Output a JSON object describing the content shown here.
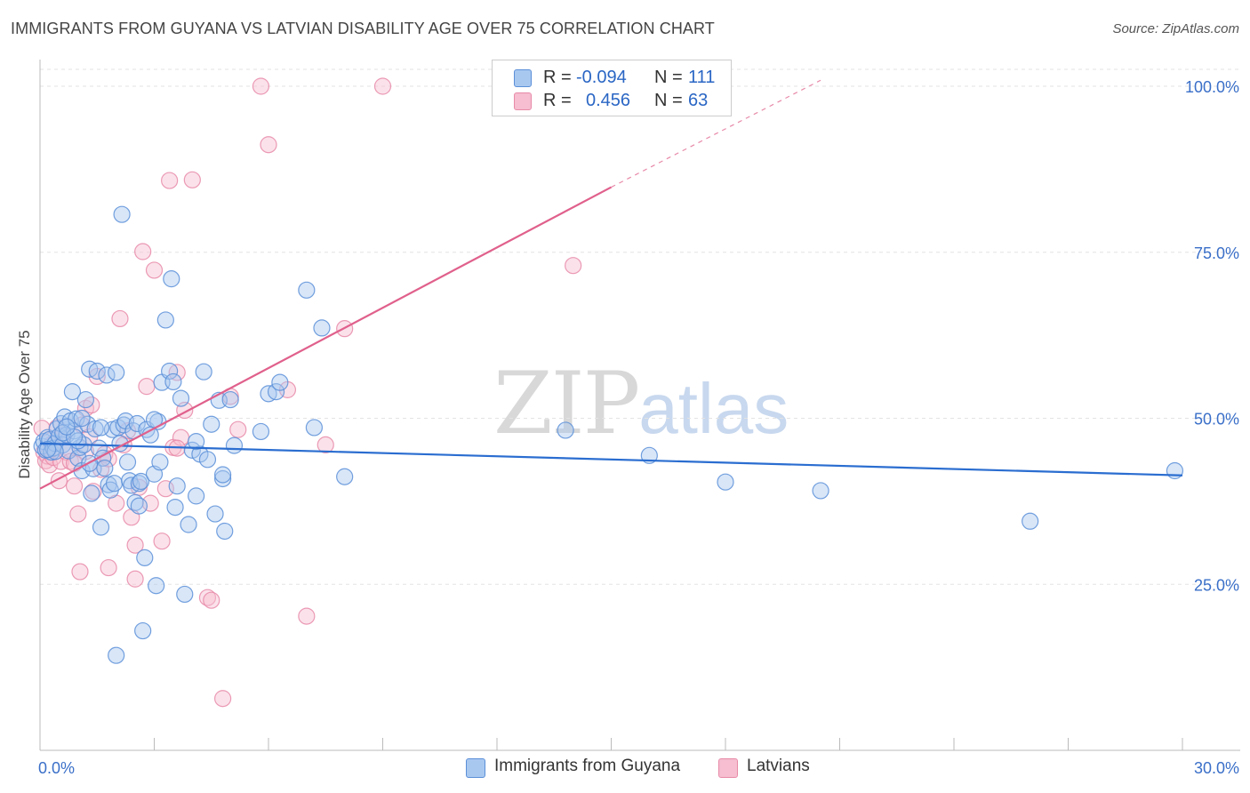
{
  "title": "IMMIGRANTS FROM GUYANA VS LATVIAN DISABILITY AGE OVER 75 CORRELATION CHART",
  "source": "Source: ZipAtlas.com",
  "watermark": {
    "zip": "ZIP",
    "atlas": "atlas"
  },
  "legend": {
    "rows": [
      {
        "r_label": "R = ",
        "r_value": "-0.094",
        "n_label": "N = ",
        "n_value": "111"
      },
      {
        "r_label": "R = ",
        "r_value": "0.456",
        "n_label": "N = ",
        "n_value": "63"
      }
    ]
  },
  "colors": {
    "blue_fill": "#a9c8f0",
    "blue_stroke": "#5b8fd8",
    "blue_line": "#2a6dd0",
    "pink_fill": "#f6bed0",
    "pink_stroke": "#e88aa8",
    "pink_line": "#e0608c",
    "tick_label": "#3a6fc8",
    "grid": "#e3e3e3"
  },
  "chart_data": {
    "type": "scatter",
    "title": "IMMIGRANTS FROM GUYANA VS LATVIAN DISABILITY AGE OVER 75 CORRELATION CHART",
    "xlabel": "",
    "ylabel": "Disability Age Over 75",
    "xlim": [
      0,
      30
    ],
    "ylim": [
      0,
      100
    ],
    "x_tick_labels": [
      "0.0%",
      "30.0%"
    ],
    "y_ticks": [
      25,
      50,
      75,
      100
    ],
    "y_tick_labels": [
      "25.0%",
      "50.0%",
      "75.0%",
      "100.0%"
    ],
    "series": [
      {
        "name": "Immigrants from Guyana",
        "color": "blue",
        "r": -0.094,
        "n": 111,
        "trend": {
          "x": [
            0,
            30
          ],
          "y": [
            46.2,
            41.4
          ]
        },
        "points": [
          [
            0.05,
            45.8
          ],
          [
            0.1,
            46.5
          ],
          [
            0.15,
            45.2
          ],
          [
            0.2,
            47.1
          ],
          [
            0.25,
            46.8
          ],
          [
            0.3,
            44.9
          ],
          [
            0.35,
            45.5
          ],
          [
            0.4,
            46.2
          ],
          [
            0.45,
            48.4
          ],
          [
            0.5,
            47.3
          ],
          [
            0.55,
            49.2
          ],
          [
            0.6,
            46.0
          ],
          [
            0.65,
            50.2
          ],
          [
            0.7,
            47.5
          ],
          [
            0.75,
            45.1
          ],
          [
            0.8,
            49.6
          ],
          [
            0.85,
            54.0
          ],
          [
            0.9,
            48.1
          ],
          [
            0.95,
            49.9
          ],
          [
            1.0,
            44.0
          ],
          [
            1.05,
            45.6
          ],
          [
            1.1,
            42.1
          ],
          [
            1.15,
            46.0
          ],
          [
            1.2,
            52.8
          ],
          [
            1.25,
            49.1
          ],
          [
            1.3,
            57.4
          ],
          [
            1.35,
            38.7
          ],
          [
            1.4,
            42.4
          ],
          [
            1.45,
            48.4
          ],
          [
            1.5,
            57.1
          ],
          [
            1.55,
            45.5
          ],
          [
            1.6,
            33.6
          ],
          [
            1.65,
            44.0
          ],
          [
            1.7,
            42.5
          ],
          [
            1.75,
            56.5
          ],
          [
            1.8,
            40.0
          ],
          [
            1.85,
            39.2
          ],
          [
            1.9,
            48.3
          ],
          [
            1.95,
            40.2
          ],
          [
            2.0,
            56.9
          ],
          [
            2.05,
            48.6
          ],
          [
            2.1,
            46.2
          ],
          [
            2.15,
            80.7
          ],
          [
            2.2,
            49.0
          ],
          [
            2.25,
            49.6
          ],
          [
            2.3,
            43.4
          ],
          [
            2.35,
            40.6
          ],
          [
            2.4,
            39.9
          ],
          [
            2.45,
            48.1
          ],
          [
            2.5,
            37.3
          ],
          [
            2.55,
            49.2
          ],
          [
            2.6,
            40.2
          ],
          [
            2.65,
            40.5
          ],
          [
            2.7,
            18.0
          ],
          [
            2.75,
            29.0
          ],
          [
            2.8,
            48.3
          ],
          [
            2.9,
            47.5
          ],
          [
            3.0,
            41.6
          ],
          [
            3.05,
            24.8
          ],
          [
            3.1,
            49.5
          ],
          [
            3.15,
            43.4
          ],
          [
            3.2,
            55.4
          ],
          [
            3.3,
            64.8
          ],
          [
            3.4,
            57.1
          ],
          [
            3.45,
            71.0
          ],
          [
            3.5,
            55.5
          ],
          [
            3.55,
            36.6
          ],
          [
            3.6,
            39.8
          ],
          [
            3.7,
            53.0
          ],
          [
            3.8,
            23.5
          ],
          [
            3.9,
            34.0
          ],
          [
            4.0,
            45.2
          ],
          [
            4.1,
            38.3
          ],
          [
            4.2,
            44.6
          ],
          [
            4.3,
            57.0
          ],
          [
            4.4,
            43.8
          ],
          [
            4.5,
            49.1
          ],
          [
            4.6,
            35.6
          ],
          [
            4.7,
            52.7
          ],
          [
            4.8,
            40.9
          ],
          [
            4.85,
            33.0
          ],
          [
            5.0,
            52.8
          ],
          [
            5.1,
            45.9
          ],
          [
            6.0,
            53.7
          ],
          [
            6.2,
            54.0
          ],
          [
            6.3,
            55.4
          ],
          [
            7.0,
            69.3
          ],
          [
            7.2,
            48.6
          ],
          [
            7.4,
            63.6
          ],
          [
            8.0,
            41.2
          ],
          [
            5.8,
            48.0
          ],
          [
            13.8,
            48.2
          ],
          [
            16.0,
            44.4
          ],
          [
            18.0,
            40.4
          ],
          [
            20.5,
            39.1
          ],
          [
            26.0,
            34.5
          ],
          [
            29.8,
            42.1
          ],
          [
            0.6,
            47.8
          ],
          [
            1.0,
            46.6
          ],
          [
            1.3,
            43.2
          ],
          [
            2.0,
            14.3
          ],
          [
            4.8,
            41.5
          ],
          [
            3.0,
            49.8
          ],
          [
            1.6,
            48.6
          ],
          [
            0.9,
            47.2
          ],
          [
            0.4,
            45.0
          ],
          [
            0.7,
            48.7
          ],
          [
            1.1,
            50.0
          ],
          [
            2.6,
            36.8
          ],
          [
            4.1,
            46.5
          ],
          [
            0.2,
            45.3
          ]
        ]
      },
      {
        "name": "Latvians",
        "color": "pink",
        "r": 0.456,
        "n": 63,
        "trend": {
          "x": [
            0,
            15.0
          ],
          "y": [
            39.4,
            84.8
          ]
        },
        "trend_dashed": {
          "x": [
            15.0,
            20.5
          ],
          "y": [
            84.8,
            100.9
          ]
        },
        "points": [
          [
            0.05,
            48.5
          ],
          [
            0.1,
            44.9
          ],
          [
            0.15,
            43.6
          ],
          [
            0.2,
            44.3
          ],
          [
            0.25,
            43.0
          ],
          [
            0.3,
            46.1
          ],
          [
            0.35,
            44.1
          ],
          [
            0.4,
            46.5
          ],
          [
            0.45,
            48.6
          ],
          [
            0.5,
            40.6
          ],
          [
            0.55,
            43.5
          ],
          [
            0.6,
            47.4
          ],
          [
            0.7,
            44.9
          ],
          [
            0.8,
            43.5
          ],
          [
            0.9,
            39.8
          ],
          [
            1.0,
            35.6
          ],
          [
            1.05,
            26.9
          ],
          [
            1.1,
            49.0
          ],
          [
            1.2,
            51.5
          ],
          [
            1.3,
            47.2
          ],
          [
            1.35,
            52.0
          ],
          [
            1.4,
            39.0
          ],
          [
            1.5,
            56.3
          ],
          [
            1.6,
            42.3
          ],
          [
            1.7,
            44.6
          ],
          [
            1.8,
            27.5
          ],
          [
            2.0,
            37.2
          ],
          [
            2.1,
            65.0
          ],
          [
            2.2,
            46.0
          ],
          [
            2.3,
            48.1
          ],
          [
            2.4,
            35.1
          ],
          [
            2.5,
            30.9
          ],
          [
            2.6,
            39.6
          ],
          [
            2.7,
            75.1
          ],
          [
            2.8,
            54.8
          ],
          [
            2.9,
            37.2
          ],
          [
            3.0,
            72.3
          ],
          [
            3.2,
            31.5
          ],
          [
            3.3,
            39.4
          ],
          [
            3.4,
            85.8
          ],
          [
            3.5,
            45.6
          ],
          [
            3.6,
            56.9
          ],
          [
            3.7,
            47.1
          ],
          [
            3.8,
            51.2
          ],
          [
            4.0,
            85.9
          ],
          [
            4.4,
            23.0
          ],
          [
            4.5,
            22.6
          ],
          [
            5.0,
            53.3
          ],
          [
            5.2,
            48.3
          ],
          [
            5.8,
            100.0
          ],
          [
            6.0,
            91.2
          ],
          [
            6.5,
            54.3
          ],
          [
            7.0,
            20.2
          ],
          [
            7.5,
            46.0
          ],
          [
            8.0,
            63.5
          ],
          [
            9.0,
            100.0
          ],
          [
            14.0,
            73.0
          ],
          [
            4.8,
            7.8
          ],
          [
            2.5,
            25.8
          ],
          [
            1.2,
            45.0
          ],
          [
            0.9,
            43.2
          ],
          [
            3.6,
            45.5
          ],
          [
            1.8,
            43.9
          ]
        ]
      }
    ]
  },
  "bottom_legend": {
    "series1": "Immigrants from Guyana",
    "series2": "Latvians"
  }
}
